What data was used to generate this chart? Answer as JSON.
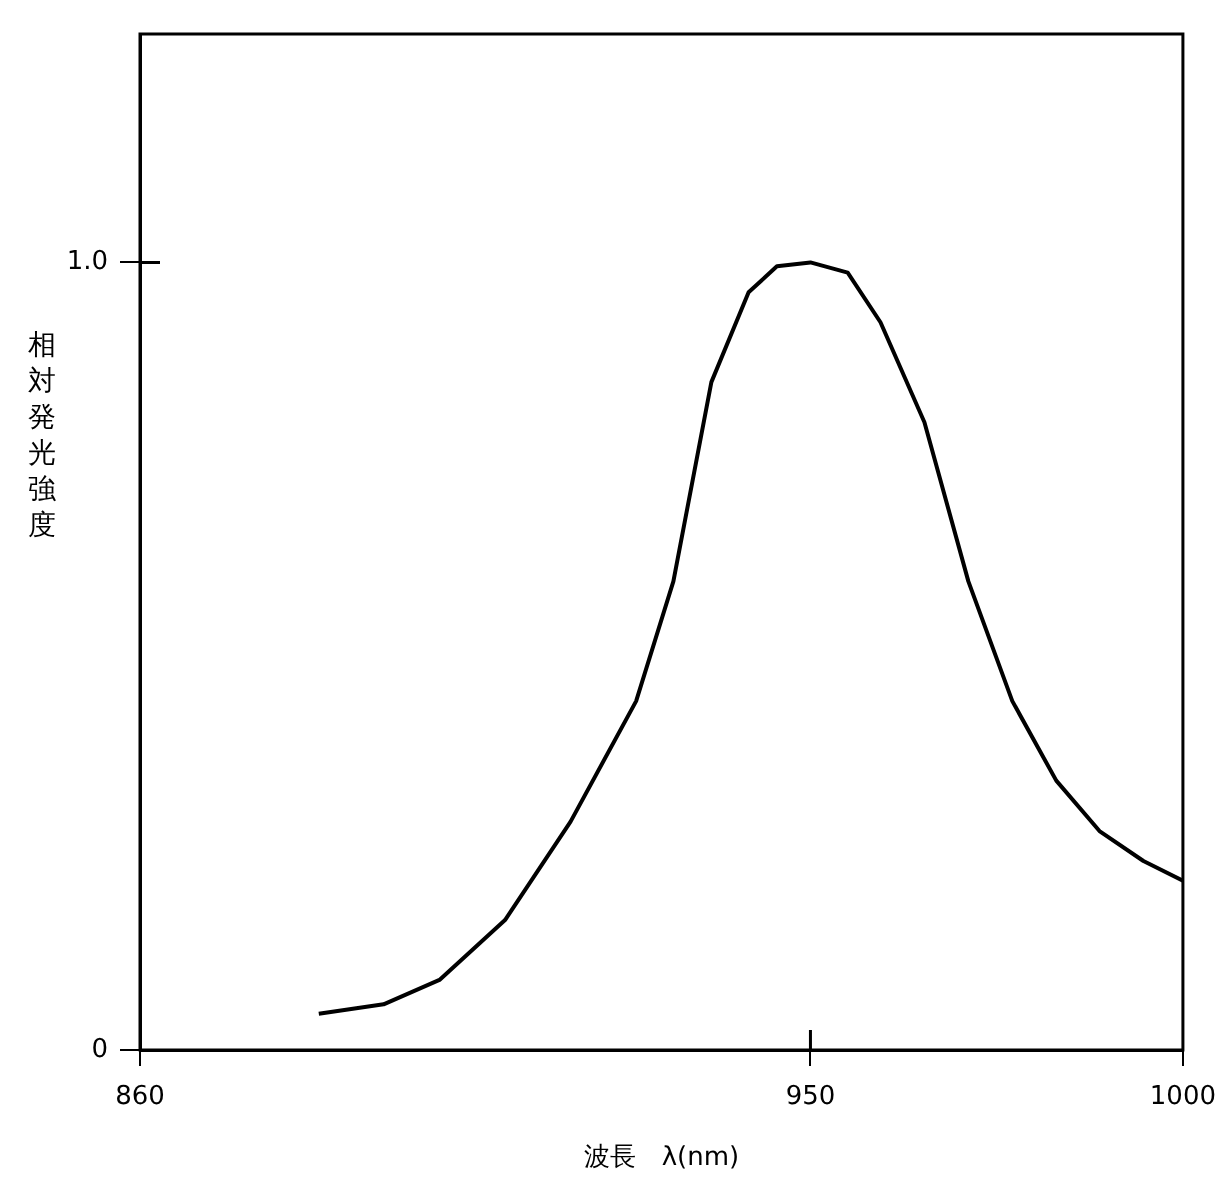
{
  "chart_data": {
    "type": "line",
    "xlabel": "波長　λ(nm)",
    "ylabel": "相対発光強度",
    "xlim": [
      860,
      1000
    ],
    "xticks": [
      860,
      950,
      1000
    ],
    "ylim": [
      0,
      1.29
    ],
    "yticks": [
      0,
      {
        "value": 1,
        "label": "1.0"
      }
    ],
    "grid": false,
    "legend": false,
    "marker": "none",
    "line_style": "solid",
    "series": [
      {
        "color": "#000000",
        "x": [
          884,
          892.7,
          900.2,
          909,
          917.8,
          926.6,
          931.6,
          936.7,
          941.7,
          945.5,
          950,
          955,
          959.4,
          965.3,
          971.2,
          977.1,
          983,
          988.8,
          994.7,
          1000
        ],
        "values": [
          0.046,
          0.058,
          0.089,
          0.165,
          0.29,
          0.443,
          0.595,
          0.848,
          0.962,
          0.995,
          1.0,
          0.987,
          0.924,
          0.797,
          0.595,
          0.443,
          0.342,
          0.278,
          0.24,
          0.215
        ]
      }
    ]
  }
}
